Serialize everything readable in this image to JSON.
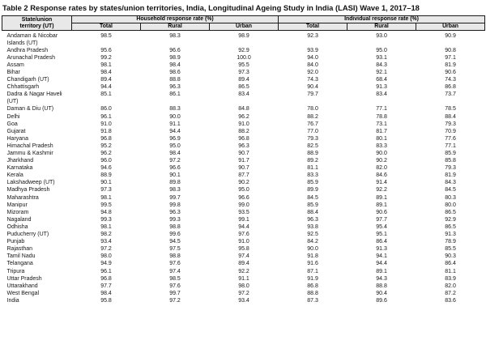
{
  "title": "Table 2 Response rates by states/union territories, India, Longitudinal Ageing Study in India (LASI) Wave 1, 2017–18",
  "colors": {
    "header_bg": "#e8e8e8",
    "border": "#1a1a1a",
    "text": "#161616"
  },
  "table": {
    "col1_header_lines": [
      "State/union",
      "territory (UT)"
    ],
    "group_headers": [
      "Household response rate (%)",
      "Individual response rate (%)"
    ],
    "sub_headers": [
      "Total",
      "Rural",
      "Urban",
      "Total",
      "Rural",
      "Urban"
    ],
    "rows": [
      {
        "state": "Andaman & Nicobar Islands (UT)",
        "values": [
          "98.5",
          "98.3",
          "98.9",
          "92.3",
          "93.0",
          "90.9"
        ]
      },
      {
        "state": "Andhra Pradesh",
        "values": [
          "95.6",
          "96.6",
          "92.9",
          "93.9",
          "95.0",
          "90.8"
        ]
      },
      {
        "state": "Arunachal Pradesh",
        "values": [
          "99.2",
          "98.9",
          "100.0",
          "94.0",
          "93.1",
          "97.1"
        ]
      },
      {
        "state": "Assam",
        "values": [
          "98.1",
          "98.4",
          "95.5",
          "84.0",
          "84.3",
          "81.9"
        ]
      },
      {
        "state": "Bihar",
        "values": [
          "98.4",
          "98.6",
          "97.3",
          "92.0",
          "92.1",
          "90.6"
        ]
      },
      {
        "state": "Chandigarh (UT)",
        "values": [
          "89.4",
          "88.8",
          "89.4",
          "74.3",
          "68.4",
          "74.3"
        ]
      },
      {
        "state": "Chhattisgarh",
        "values": [
          "94.4",
          "96.3",
          "86.5",
          "90.4",
          "91.3",
          "86.8"
        ]
      },
      {
        "state": "Dadra & Nagar Haveli (UT)",
        "values": [
          "85.1",
          "86.1",
          "83.4",
          "79.7",
          "83.4",
          "73.7"
        ]
      },
      {
        "state": "Daman & Diu (UT)",
        "values": [
          "86.0",
          "88.3",
          "84.8",
          "78.0",
          "77.1",
          "78.5"
        ]
      },
      {
        "state": "Delhi",
        "values": [
          "96.1",
          "90.0",
          "96.2",
          "88.2",
          "78.8",
          "88.4"
        ]
      },
      {
        "state": "Goa",
        "values": [
          "91.0",
          "91.1",
          "91.0",
          "76.7",
          "73.1",
          "79.3"
        ]
      },
      {
        "state": "Gujarat",
        "values": [
          "91.8",
          "94.4",
          "88.2",
          "77.0",
          "81.7",
          "70.9"
        ]
      },
      {
        "state": "Haryana",
        "values": [
          "96.8",
          "96.9",
          "96.8",
          "79.3",
          "80.1",
          "77.6"
        ]
      },
      {
        "state": "Himachal Pradesh",
        "values": [
          "95.2",
          "95.0",
          "96.3",
          "82.5",
          "83.3",
          "77.1"
        ]
      },
      {
        "state": "Jammu & Kashmir",
        "values": [
          "96.2",
          "98.4",
          "90.7",
          "88.9",
          "90.0",
          "85.9"
        ]
      },
      {
        "state": "Jharkhand",
        "values": [
          "96.0",
          "97.2",
          "91.7",
          "89.2",
          "90.2",
          "85.8"
        ]
      },
      {
        "state": "Karnataka",
        "values": [
          "94.6",
          "96.6",
          "90.7",
          "81.1",
          "82.0",
          "79.3"
        ]
      },
      {
        "state": "Kerala",
        "values": [
          "88.9",
          "90.1",
          "87.7",
          "83.3",
          "84.6",
          "81.9"
        ]
      },
      {
        "state": "Lakshadweep (UT)",
        "values": [
          "90.1",
          "89.8",
          "90.2",
          "85.9",
          "91.4",
          "84.3"
        ]
      },
      {
        "state": "Madhya Pradesh",
        "values": [
          "97.3",
          "98.3",
          "95.0",
          "89.9",
          "92.2",
          "84.5"
        ]
      },
      {
        "state": "Maharashtra",
        "values": [
          "98.1",
          "99.7",
          "96.6",
          "84.5",
          "89.1",
          "80.3"
        ]
      },
      {
        "state": "Manipur",
        "values": [
          "99.5",
          "99.8",
          "99.0",
          "85.9",
          "89.1",
          "80.0"
        ]
      },
      {
        "state": "Mizoram",
        "values": [
          "94.8",
          "96.3",
          "93.5",
          "88.4",
          "90.6",
          "86.5"
        ]
      },
      {
        "state": "Nagaland",
        "values": [
          "99.3",
          "99.3",
          "99.1",
          "96.3",
          "97.7",
          "92.9"
        ]
      },
      {
        "state": "Odhisha",
        "values": [
          "98.1",
          "98.8",
          "94.4",
          "93.8",
          "95.4",
          "86.5"
        ]
      },
      {
        "state": "Puducherry (UT)",
        "values": [
          "98.2",
          "99.6",
          "97.6",
          "92.5",
          "95.1",
          "91.3"
        ]
      },
      {
        "state": "Punjab",
        "values": [
          "93.4",
          "94.5",
          "91.0",
          "84.2",
          "86.4",
          "78.9"
        ]
      },
      {
        "state": "Rajasthan",
        "values": [
          "97.2",
          "97.5",
          "95.8",
          "90.0",
          "91.3",
          "85.5"
        ]
      },
      {
        "state": "Tamil Nadu",
        "values": [
          "98.0",
          "98.8",
          "97.4",
          "91.8",
          "94.1",
          "90.3"
        ]
      },
      {
        "state": "Telangana",
        "values": [
          "94.9",
          "97.6",
          "89.4",
          "91.6",
          "94.4",
          "86.4"
        ]
      },
      {
        "state": "Tripura",
        "values": [
          "96.1",
          "97.4",
          "92.2",
          "87.1",
          "89.1",
          "81.1"
        ]
      },
      {
        "state": "Uttar Pradesh",
        "values": [
          "96.8",
          "98.5",
          "91.1",
          "91.9",
          "94.3",
          "83.9"
        ]
      },
      {
        "state": "Uttarakhand",
        "values": [
          "97.7",
          "97.6",
          "98.0",
          "86.8",
          "88.8",
          "82.0"
        ]
      },
      {
        "state": "West Bengal",
        "values": [
          "98.4",
          "99.7",
          "97.2",
          "88.8",
          "90.4",
          "87.2"
        ]
      },
      {
        "state": "India",
        "values": [
          "95.8",
          "97.2",
          "93.4",
          "87.3",
          "89.6",
          "83.6"
        ]
      }
    ]
  }
}
